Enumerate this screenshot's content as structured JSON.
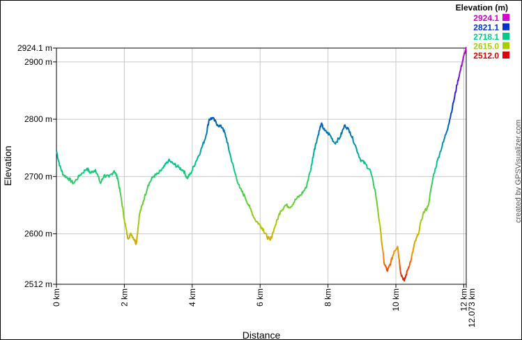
{
  "chart_data": {
    "type": "line",
    "xlabel": "Distance",
    "ylabel": "Elevation",
    "xlim": [
      0,
      12.073
    ],
    "ylim": [
      2512,
      2924.1
    ],
    "grid": true,
    "x_ticks": [
      {
        "value": 0,
        "label": "0 km"
      },
      {
        "value": 2,
        "label": "2 km"
      },
      {
        "value": 4,
        "label": "4 km"
      },
      {
        "value": 6,
        "label": "6 km"
      },
      {
        "value": 8,
        "label": "8 km"
      },
      {
        "value": 10,
        "label": "10 km"
      },
      {
        "value": 12,
        "label": "12 km"
      },
      {
        "value": 12.073,
        "label": "12.073 km"
      }
    ],
    "y_ticks": [
      {
        "value": 2512,
        "label": "2512 m"
      },
      {
        "value": 2600,
        "label": "2600 m"
      },
      {
        "value": 2700,
        "label": "2700 m"
      },
      {
        "value": 2800,
        "label": "2800 m"
      },
      {
        "value": 2900,
        "label": "2900 m"
      },
      {
        "value": 2924.1,
        "label": "2924.1 m"
      }
    ],
    "legend": {
      "title": "Elevation (m)",
      "placement": "top-right",
      "entries": [
        {
          "label": "2924.1",
          "value": 2924.1,
          "color": "#d400d4"
        },
        {
          "label": "2821.1",
          "value": 2821.1,
          "color": "#0033cc"
        },
        {
          "label": "2718.1",
          "value": 2718.1,
          "color": "#00cc88"
        },
        {
          "label": "2615.0",
          "value": 2615.0,
          "color": "#a8cc00"
        },
        {
          "label": "2512.0",
          "value": 2512.0,
          "color": "#dd0000"
        }
      ]
    },
    "series": [
      {
        "x": [
          0,
          0.1,
          0.2,
          0.35,
          0.5,
          0.7,
          0.9,
          1.0,
          1.15,
          1.3,
          1.4,
          1.55,
          1.7,
          1.8,
          1.9,
          2.0,
          2.1,
          2.2,
          2.3,
          2.35,
          2.45,
          2.55,
          2.7,
          2.85,
          3.0,
          3.15,
          3.3,
          3.45,
          3.6,
          3.75,
          3.85,
          3.95,
          4.1,
          4.25,
          4.4,
          4.5,
          4.6,
          4.75,
          4.9,
          5.0,
          5.1,
          5.25,
          5.4,
          5.55,
          5.7,
          5.85,
          6.0,
          6.1,
          6.2,
          6.3,
          6.45,
          6.6,
          6.75,
          6.9,
          7.05,
          7.2,
          7.35,
          7.5,
          7.6,
          7.7,
          7.8,
          7.9,
          8.05,
          8.2,
          8.35,
          8.5,
          8.65,
          8.8,
          8.95,
          9.1,
          9.25,
          9.4,
          9.55,
          9.65,
          9.75,
          9.85,
          9.95,
          10.05,
          10.15,
          10.25,
          10.35,
          10.45,
          10.55,
          10.65,
          10.8,
          10.95,
          11.1,
          11.25,
          11.4,
          11.55,
          11.7,
          11.8,
          11.9,
          12.0,
          12.073
        ],
        "y": [
          2745,
          2718,
          2703,
          2697,
          2688,
          2703,
          2714,
          2706,
          2712,
          2688,
          2702,
          2699,
          2710,
          2698,
          2665,
          2625,
          2592,
          2600,
          2590,
          2583,
          2635,
          2655,
          2685,
          2700,
          2705,
          2715,
          2728,
          2722,
          2716,
          2710,
          2697,
          2705,
          2725,
          2745,
          2770,
          2800,
          2802,
          2790,
          2785,
          2768,
          2742,
          2708,
          2680,
          2665,
          2645,
          2625,
          2615,
          2607,
          2595,
          2589,
          2615,
          2640,
          2650,
          2647,
          2660,
          2668,
          2680,
          2715,
          2748,
          2770,
          2792,
          2780,
          2773,
          2758,
          2768,
          2790,
          2778,
          2755,
          2730,
          2722,
          2710,
          2672,
          2605,
          2550,
          2535,
          2550,
          2570,
          2578,
          2530,
          2518,
          2538,
          2555,
          2583,
          2598,
          2635,
          2648,
          2700,
          2733,
          2760,
          2790,
          2830,
          2860,
          2885,
          2910,
          2924.1
        ]
      }
    ],
    "credit": "created by GPSVisualizer.com"
  }
}
